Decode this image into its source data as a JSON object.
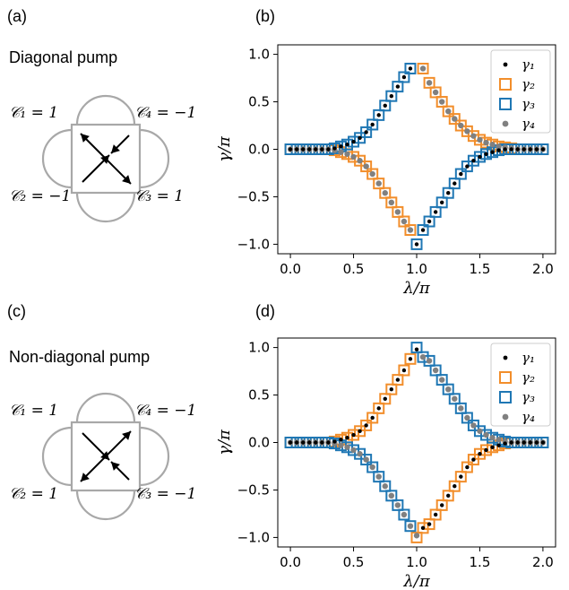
{
  "panels": [
    {
      "id": "a",
      "letter": "(a)",
      "title": "Diagonal pump",
      "chern": {
        "tl": "𝒞₁ = 1",
        "tr": "𝒞₄ = −1",
        "bl": "𝒞₂ = −1",
        "br": "𝒞₃ = 1"
      },
      "arrows": "diagonal"
    },
    {
      "id": "c",
      "letter": "(c)",
      "title": "Non-diagonal pump",
      "chern": {
        "tl": "𝒞₁ = 1",
        "tr": "𝒞₄ = −1",
        "bl": "𝒞₂ = 1",
        "br": "𝒞₃ = −1"
      },
      "arrows": "nondiagonal"
    }
  ],
  "legend_entries": [
    {
      "label": "γ₁",
      "marker": "dot",
      "color": "#000000"
    },
    {
      "label": "γ₂",
      "marker": "square",
      "color": "#f28e2b"
    },
    {
      "label": "γ₃",
      "marker": "square",
      "color": "#1f77b4"
    },
    {
      "label": "γ₄",
      "marker": "dot",
      "color": "#808080"
    }
  ],
  "colors": {
    "gamma1": "#000000",
    "gamma2": "#f28e2b",
    "gamma3": "#1f77b4",
    "gamma4": "#808080",
    "schematic": "#a8a8a8",
    "arrow": "#000000"
  },
  "chart_data": [
    {
      "panel": "(b)",
      "type": "scatter",
      "xlabel": "λ/π",
      "ylabel": "γ/π",
      "xlim": [
        -0.1,
        2.1
      ],
      "ylim": [
        -1.1,
        1.1
      ],
      "xticks": [
        "0.0",
        "0.5",
        "1.0",
        "1.5",
        "2.0"
      ],
      "yticks": [
        "−1.0",
        "−0.5",
        "0.0",
        "0.5",
        "1.0"
      ],
      "legend": "top-right",
      "x": [
        0.0,
        0.05,
        0.1,
        0.15,
        0.2,
        0.25,
        0.3,
        0.35,
        0.4,
        0.45,
        0.5,
        0.55,
        0.6,
        0.65,
        0.7,
        0.75,
        0.8,
        0.85,
        0.9,
        0.95,
        1.0,
        1.05,
        1.1,
        1.15,
        1.2,
        1.25,
        1.3,
        1.35,
        1.4,
        1.45,
        1.5,
        1.55,
        1.6,
        1.65,
        1.7,
        1.75,
        1.8,
        1.85,
        1.9,
        1.95,
        2.0
      ],
      "series": [
        {
          "name": "γ₁",
          "values": [
            0,
            0,
            0,
            0,
            0,
            0,
            0,
            0.01,
            0.03,
            0.05,
            0.08,
            0.12,
            0.18,
            0.26,
            0.36,
            0.46,
            0.56,
            0.66,
            0.76,
            0.85,
            -1.0,
            -0.85,
            -0.76,
            -0.66,
            -0.56,
            -0.46,
            -0.36,
            -0.26,
            -0.18,
            -0.12,
            -0.08,
            -0.05,
            -0.03,
            -0.01,
            0,
            0,
            0,
            0,
            0,
            0,
            0
          ]
        },
        {
          "name": "γ₂",
          "values": [
            0,
            0,
            0,
            0,
            0,
            0,
            0,
            -0.01,
            -0.03,
            -0.05,
            -0.08,
            -0.12,
            -0.18,
            -0.26,
            -0.36,
            -0.46,
            -0.56,
            -0.66,
            -0.76,
            -0.85,
            null,
            0.85,
            0.7,
            0.6,
            0.5,
            0.4,
            0.32,
            0.25,
            0.19,
            0.14,
            0.1,
            0.07,
            0.05,
            0.03,
            0.02,
            0.01,
            0,
            0,
            0,
            0,
            0
          ]
        },
        {
          "name": "γ₃",
          "values": [
            0,
            0,
            0,
            0,
            0,
            0,
            0,
            0.01,
            0.03,
            0.05,
            0.08,
            0.12,
            0.18,
            0.26,
            0.36,
            0.46,
            0.56,
            0.66,
            0.76,
            0.85,
            -1.0,
            -0.85,
            -0.76,
            -0.66,
            -0.56,
            -0.46,
            -0.36,
            -0.26,
            -0.18,
            -0.12,
            -0.08,
            -0.05,
            -0.03,
            -0.01,
            0,
            0,
            0,
            0,
            0,
            0,
            0
          ]
        },
        {
          "name": "γ₄",
          "values": [
            0,
            0,
            0,
            0,
            0,
            0,
            0,
            -0.01,
            -0.03,
            -0.05,
            -0.08,
            -0.12,
            -0.18,
            -0.26,
            -0.36,
            -0.46,
            -0.56,
            -0.66,
            -0.76,
            -0.85,
            null,
            0.85,
            0.7,
            0.6,
            0.5,
            0.4,
            0.32,
            0.25,
            0.19,
            0.14,
            0.1,
            0.07,
            0.05,
            0.03,
            0.02,
            0.01,
            0,
            0,
            0,
            0,
            0
          ]
        }
      ]
    },
    {
      "panel": "(d)",
      "type": "scatter",
      "xlabel": "λ/π",
      "ylabel": "γ/π",
      "xlim": [
        -0.1,
        2.1
      ],
      "ylim": [
        -1.1,
        1.1
      ],
      "xticks": [
        "0.0",
        "0.5",
        "1.0",
        "1.5",
        "2.0"
      ],
      "yticks": [
        "−1.0",
        "−0.5",
        "0.0",
        "0.5",
        "1.0"
      ],
      "legend": "top-right",
      "x": [
        0.0,
        0.05,
        0.1,
        0.15,
        0.2,
        0.25,
        0.3,
        0.35,
        0.4,
        0.45,
        0.5,
        0.55,
        0.6,
        0.65,
        0.7,
        0.75,
        0.8,
        0.85,
        0.9,
        0.95,
        1.0,
        1.05,
        1.1,
        1.15,
        1.2,
        1.25,
        1.3,
        1.35,
        1.4,
        1.45,
        1.5,
        1.55,
        1.6,
        1.65,
        1.7,
        1.75,
        1.8,
        1.85,
        1.9,
        1.95,
        2.0
      ],
      "series": [
        {
          "name": "γ₁",
          "values": [
            0,
            0,
            0,
            0,
            0,
            0,
            0,
            0.01,
            0.03,
            0.05,
            0.08,
            0.12,
            0.18,
            0.26,
            0.36,
            0.46,
            0.56,
            0.66,
            0.76,
            0.88,
            0.98,
            -0.9,
            -0.86,
            -0.76,
            -0.66,
            -0.56,
            -0.46,
            -0.36,
            -0.26,
            -0.18,
            -0.12,
            -0.08,
            -0.05,
            -0.03,
            -0.01,
            0,
            0,
            0,
            0,
            0,
            0
          ]
        },
        {
          "name": "γ₂",
          "values": [
            0,
            0,
            0,
            0,
            0,
            0,
            0,
            0.01,
            0.03,
            0.05,
            0.08,
            0.12,
            0.18,
            0.26,
            0.36,
            0.46,
            0.56,
            0.66,
            0.76,
            0.88,
            -1.0,
            -0.9,
            -0.86,
            -0.76,
            -0.66,
            -0.56,
            -0.46,
            -0.36,
            -0.26,
            -0.18,
            -0.12,
            -0.08,
            -0.05,
            -0.03,
            -0.01,
            0,
            0,
            0,
            0,
            0,
            0
          ]
        },
        {
          "name": "γ₃",
          "values": [
            0,
            0,
            0,
            0,
            0,
            0,
            0,
            -0.01,
            -0.03,
            -0.05,
            -0.08,
            -0.12,
            -0.18,
            -0.26,
            -0.36,
            -0.46,
            -0.56,
            -0.66,
            -0.76,
            -0.88,
            1.0,
            0.9,
            0.86,
            0.76,
            0.66,
            0.56,
            0.46,
            0.36,
            0.26,
            0.18,
            0.12,
            0.08,
            0.05,
            0.03,
            0.01,
            0,
            0,
            0,
            0,
            0,
            0
          ]
        },
        {
          "name": "γ₄",
          "values": [
            0,
            0,
            0,
            0,
            0,
            0,
            0,
            -0.01,
            -0.03,
            -0.05,
            -0.08,
            -0.12,
            -0.18,
            -0.26,
            -0.36,
            -0.46,
            -0.56,
            -0.66,
            -0.76,
            -0.88,
            -0.98,
            0.9,
            0.86,
            0.76,
            0.66,
            0.56,
            0.46,
            0.36,
            0.26,
            0.18,
            0.12,
            0.08,
            0.05,
            0.03,
            0.01,
            0,
            0,
            0,
            0,
            0,
            0
          ]
        }
      ]
    }
  ]
}
